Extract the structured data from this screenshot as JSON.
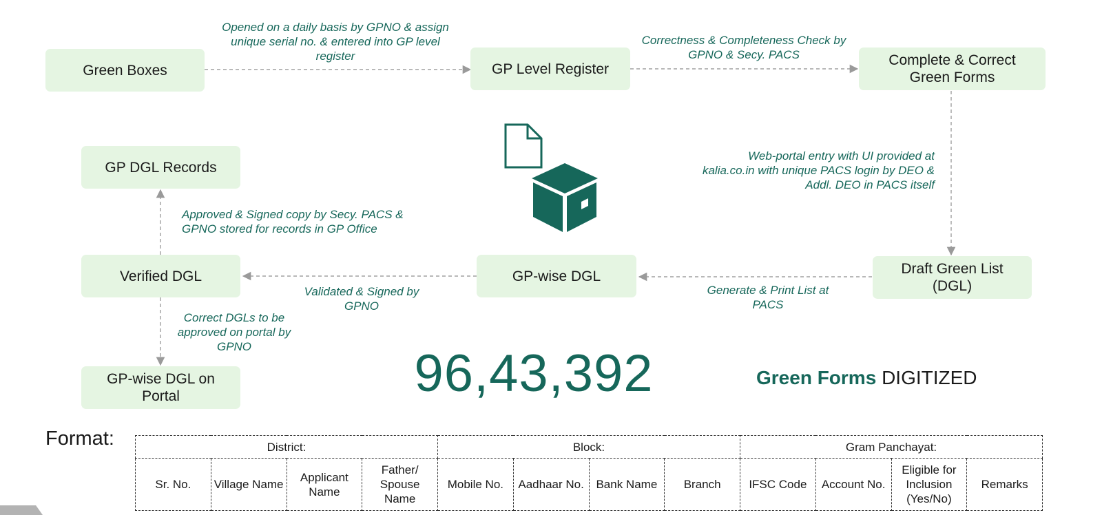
{
  "nodes": {
    "green_boxes": "Green Boxes",
    "gp_level_register": "GP Level Register",
    "complete_correct": "Complete & Correct Green Forms",
    "draft_green_list": "Draft Green List (DGL)",
    "gp_wise_dgl": "GP-wise DGL",
    "verified_dgl": "Verified DGL",
    "gp_dgl_records": "GP DGL Records",
    "gp_wise_dgl_portal": "GP-wise DGL on Portal"
  },
  "notes": {
    "opened_daily": "Opened on a daily basis by GPNO & assign unique serial no. & entered into GP level register",
    "correctness_check": "Correctness & Completeness Check by GPNO & Secy. PACS",
    "web_portal_entry": "Web-portal entry with UI provided at kalia.co.in with unique PACS login by DEO & Addl. DEO in PACS itself",
    "generate_print": "Generate & Print List at PACS",
    "validated_signed": "Validated & Signed by GPNO",
    "approved_signed": "Approved & Signed copy by Secy. PACS & GPNO stored for records in GP Office",
    "correct_dgls": "Correct DGLs to be approved on portal by GPNO"
  },
  "stat": {
    "value": "96,43,392",
    "label_bold": "Green Forms",
    "label_rest": "DIGITIZED"
  },
  "format": {
    "label": "Format:",
    "groups": [
      "District:",
      "Block:",
      "Gram Panchayat:"
    ],
    "columns": [
      "Sr. No.",
      "Village Name",
      "Applicant Name",
      "Father/ Spouse Name",
      "Mobile No.",
      "Aadhaar No.",
      "Bank Name",
      "Branch",
      "IFSC Code",
      "Account No.",
      "Eligible for Inclusion (Yes/No)",
      "Remarks"
    ]
  },
  "icons": {
    "document": "document-icon",
    "box": "package-box-icon"
  },
  "colors": {
    "accent": "#16675a",
    "box_fill": "#e5f5e2"
  }
}
